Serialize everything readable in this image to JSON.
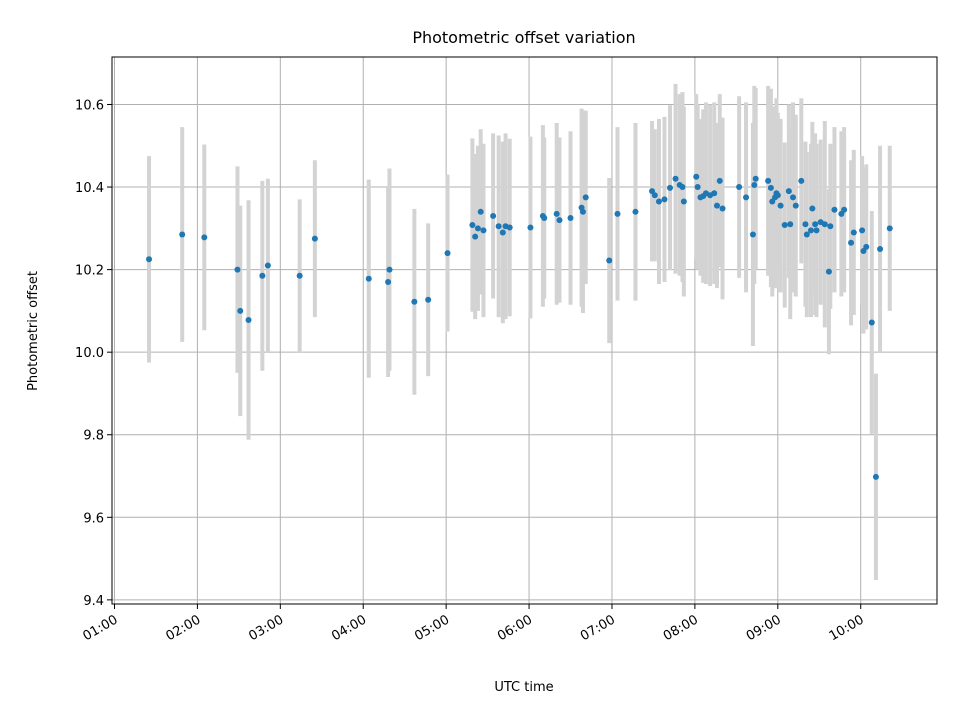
{
  "chart_data": {
    "type": "scatter",
    "title": "Photometric offset variation",
    "xlabel": "UTC time",
    "ylabel": "Photometric offset",
    "x_tick_labels": [
      "01:00",
      "02:00",
      "03:00",
      "04:00",
      "05:00",
      "06:00",
      "07:00",
      "08:00",
      "09:00",
      "10:00"
    ],
    "y_tick_labels": [
      "9.4",
      "9.6",
      "9.8",
      "10.0",
      "10.2",
      "10.4",
      "10.6"
    ],
    "xlim_hours": [
      0.97,
      10.92
    ],
    "ylim": [
      9.39,
      10.715
    ],
    "grid": true,
    "colors": {
      "points": "#1f77b4",
      "errorbars": "#d3d3d3"
    },
    "series": [
      {
        "x": [
          "01:25",
          "01:49",
          "02:05",
          "02:29",
          "02:31",
          "02:37",
          "02:47",
          "02:51",
          "03:14",
          "03:25",
          "04:04",
          "04:18",
          "04:19",
          "04:37",
          "04:47",
          "05:01",
          "05:19",
          "05:21",
          "05:23",
          "05:25",
          "05:27",
          "05:34",
          "05:38",
          "05:41",
          "05:43",
          "05:46",
          "06:01",
          "06:10",
          "06:11",
          "06:20",
          "06:22",
          "06:30",
          "06:38",
          "06:39",
          "06:41",
          "06:58",
          "07:04",
          "07:17",
          "07:29",
          "07:31",
          "07:34",
          "07:38",
          "07:42",
          "07:46",
          "07:49",
          "07:51",
          "07:52",
          "08:01",
          "08:02",
          "08:04",
          "08:06",
          "08:08",
          "08:11",
          "08:14",
          "08:16",
          "08:18",
          "08:20",
          "08:32",
          "08:37",
          "08:42",
          "08:43",
          "08:44",
          "08:53",
          "08:55",
          "08:56",
          "08:58",
          "08:59",
          "09:00",
          "09:02",
          "09:05",
          "09:08",
          "09:09",
          "09:11",
          "09:13",
          "09:17",
          "09:20",
          "09:21",
          "09:24",
          "09:25",
          "09:27",
          "09:28",
          "09:31",
          "09:34",
          "09:37",
          "09:38",
          "09:41",
          "09:46",
          "09:48",
          "09:53",
          "09:55",
          "10:01",
          "10:02",
          "10:04",
          "10:08",
          "10:11",
          "10:14",
          "10:21"
        ],
        "y": [
          10.225,
          10.285,
          10.278,
          10.2,
          10.1,
          10.078,
          10.185,
          10.21,
          10.185,
          10.275,
          10.178,
          10.17,
          10.2,
          10.122,
          10.127,
          10.24,
          10.308,
          10.28,
          10.3,
          10.34,
          10.295,
          10.33,
          10.305,
          10.29,
          10.305,
          10.302,
          10.302,
          10.33,
          10.325,
          10.335,
          10.32,
          10.325,
          10.35,
          10.34,
          10.375,
          10.222,
          10.335,
          10.34,
          10.39,
          10.38,
          10.365,
          10.37,
          10.398,
          10.42,
          10.405,
          10.4,
          10.365,
          10.425,
          10.4,
          10.375,
          10.378,
          10.385,
          10.38,
          10.385,
          10.355,
          10.415,
          10.348,
          10.4,
          10.375,
          10.285,
          10.405,
          10.42,
          10.415,
          10.398,
          10.365,
          10.375,
          10.385,
          10.38,
          10.355,
          10.308,
          10.39,
          10.31,
          10.375,
          10.355,
          10.415,
          10.31,
          10.285,
          10.295,
          10.348,
          10.31,
          10.295,
          10.315,
          10.31,
          10.195,
          10.305,
          10.345,
          10.335,
          10.345,
          10.265,
          10.29,
          10.295,
          10.245,
          10.255,
          10.072,
          9.698,
          10.25,
          10.3
        ],
        "err": [
          0.25,
          0.26,
          0.225,
          0.25,
          0.255,
          0.29,
          0.23,
          0.21,
          0.185,
          0.19,
          0.24,
          0.23,
          0.245,
          0.225,
          0.185,
          0.19,
          0.21,
          0.2,
          0.2,
          0.2,
          0.21,
          0.2,
          0.22,
          0.22,
          0.225,
          0.215,
          0.22,
          0.22,
          0.195,
          0.22,
          0.2,
          0.21,
          0.24,
          0.245,
          0.21,
          0.2,
          0.21,
          0.215,
          0.17,
          0.16,
          0.2,
          0.2,
          0.2,
          0.23,
          0.22,
          0.23,
          0.23,
          0.2,
          0.2,
          0.19,
          0.21,
          0.22,
          0.22,
          0.22,
          0.2,
          0.21,
          0.22,
          0.22,
          0.23,
          0.27,
          0.24,
          0.22,
          0.23,
          0.24,
          0.23,
          0.22,
          0.23,
          0.2,
          0.21,
          0.2,
          0.21,
          0.23,
          0.23,
          0.22,
          0.2,
          0.2,
          0.2,
          0.21,
          0.21,
          0.22,
          0.21,
          0.2,
          0.25,
          0.2,
          0.2,
          0.2,
          0.2,
          0.2,
          0.2,
          0.2,
          0.18,
          0.2,
          0.2,
          0.27,
          0.25,
          0.25,
          0.2
        ]
      }
    ]
  }
}
